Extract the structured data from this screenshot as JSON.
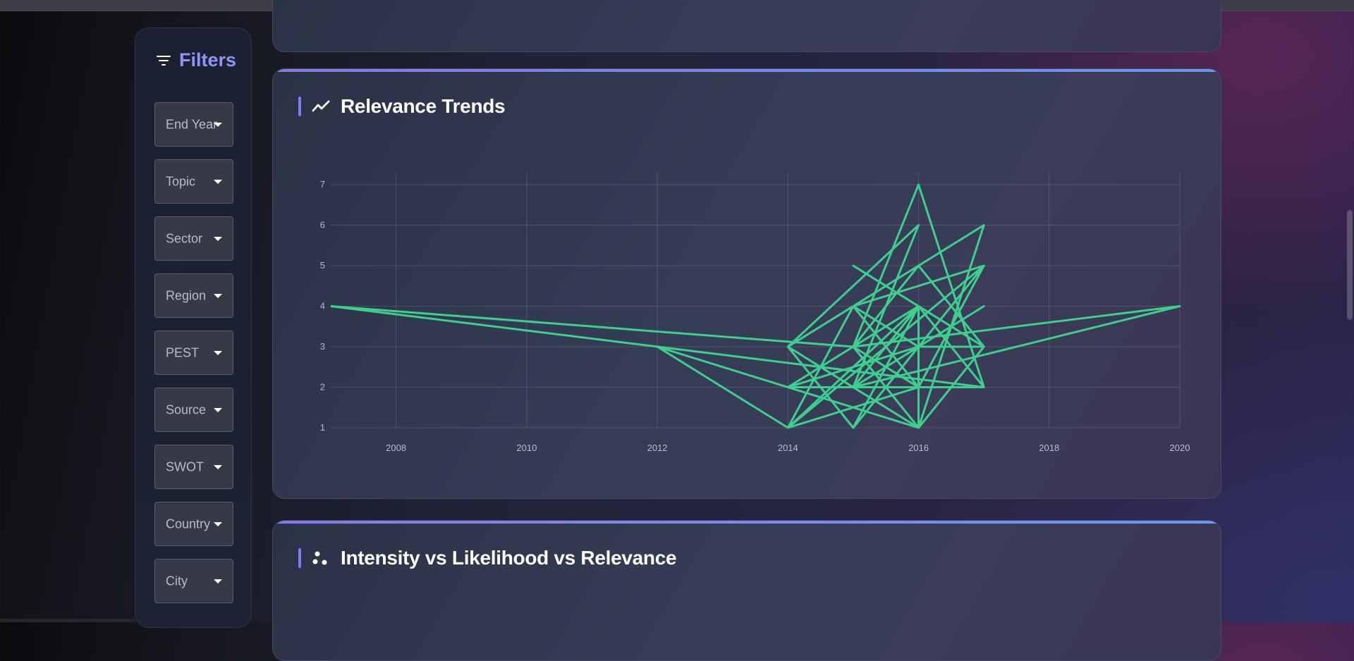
{
  "sidebar": {
    "title": "Filters",
    "title_icon": "filter-icon",
    "filters": [
      {
        "label": "End Year"
      },
      {
        "label": "Topic"
      },
      {
        "label": "Sector"
      },
      {
        "label": "Region"
      },
      {
        "label": "PEST"
      },
      {
        "label": "Source"
      },
      {
        "label": "SWOT"
      },
      {
        "label": "Country"
      },
      {
        "label": "City"
      }
    ]
  },
  "cards": {
    "relevance": {
      "title": "Relevance Trends",
      "icon": "trending-up-icon"
    },
    "ivl": {
      "title": "Intensity vs Likelihood vs Relevance",
      "icon": "scatter-icon"
    }
  },
  "colors": {
    "accent": "#8f94f5",
    "line": "#3ecf8e",
    "background": "#1f2234"
  },
  "chart_data": {
    "type": "line",
    "title": "",
    "xlabel": "",
    "ylabel": "",
    "xlim": [
      2007,
      2020
    ],
    "ylim": [
      1,
      7
    ],
    "x_ticks": [
      2008,
      2010,
      2012,
      2014,
      2016,
      2018,
      2020
    ],
    "y_ticks": [
      1,
      2,
      3,
      4,
      5,
      6,
      7
    ],
    "grid": true,
    "series": [
      {
        "x": [
          2007,
          2015,
          2016,
          2014,
          2016,
          2015,
          2017,
          2016,
          2015,
          2014,
          2017,
          2016,
          2015,
          2016,
          2017,
          2014,
          2016,
          2015,
          2017,
          2016,
          2014,
          2015,
          2016,
          2017,
          2015,
          2020,
          2015,
          2016,
          2017,
          2016,
          2016,
          2015,
          2016,
          2014,
          2016,
          2012,
          2014,
          2017,
          2015,
          2016,
          2014,
          2016,
          2015,
          2016,
          2017,
          2007
        ],
        "y": [
          4,
          3,
          2,
          1,
          4,
          5,
          3,
          3,
          1,
          3,
          6,
          1,
          3,
          7,
          2,
          2,
          4,
          1,
          5,
          2,
          1,
          4,
          3,
          4,
          2,
          4,
          3,
          5,
          3,
          1,
          4,
          2,
          6,
          3,
          1,
          3,
          1,
          5,
          4,
          2,
          2,
          3,
          1,
          4,
          2,
          4
        ]
      }
    ]
  }
}
